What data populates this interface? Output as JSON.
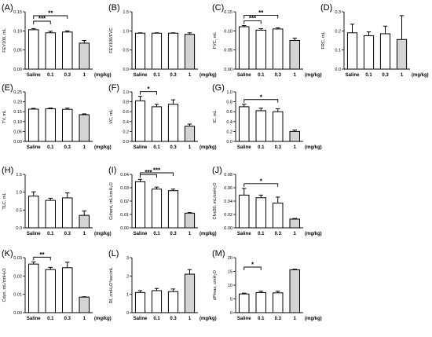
{
  "unit_label": "(mg/kg)",
  "colors": {
    "bar_fill_default": "#ffffff",
    "bar_fill_shaded": "#d4d4d4",
    "ink": "#000000"
  },
  "chart_data": [
    {
      "panel": "(A)",
      "type": "bar",
      "ylabel": "FEV100, mL",
      "ylim": [
        0,
        0.15
      ],
      "yticks": [
        "0.00",
        "0.05",
        "0.10",
        "0.15"
      ],
      "categories": [
        "Saline",
        "0.1",
        "0.3",
        "1"
      ],
      "values": [
        0.103,
        0.095,
        0.097,
        0.068
      ],
      "errors": [
        0.003,
        0.004,
        0.003,
        0.007
      ],
      "shaded": [
        false,
        false,
        false,
        true
      ],
      "significance": [
        {
          "from": 0,
          "to": 1,
          "label": "***"
        },
        {
          "from": 0,
          "to": 2,
          "label": "**"
        }
      ]
    },
    {
      "panel": "(B)",
      "type": "bar",
      "ylabel": "FEV100/FVC",
      "ylim": [
        0,
        1.5
      ],
      "yticks": [
        "0.0",
        "0.5",
        "1.0",
        "1.5"
      ],
      "categories": [
        "Saline",
        "0.1",
        "0.3",
        "1"
      ],
      "values": [
        0.94,
        0.94,
        0.94,
        0.91
      ],
      "errors": [
        0.01,
        0.01,
        0.01,
        0.04
      ],
      "shaded": [
        false,
        false,
        false,
        true
      ],
      "significance": []
    },
    {
      "panel": "(C)",
      "type": "bar",
      "ylabel": "FVC, mL",
      "ylim": [
        0,
        0.15
      ],
      "yticks": [
        "0.00",
        "0.05",
        "0.10",
        "0.15"
      ],
      "categories": [
        "Saline",
        "0.1",
        "0.3",
        "1"
      ],
      "values": [
        0.111,
        0.102,
        0.105,
        0.075
      ],
      "errors": [
        0.003,
        0.004,
        0.003,
        0.006
      ],
      "shaded": [
        false,
        false,
        false,
        true
      ],
      "significance": [
        {
          "from": 0,
          "to": 1,
          "label": "***"
        },
        {
          "from": 0,
          "to": 2,
          "label": "**"
        }
      ]
    },
    {
      "panel": "(D)",
      "type": "bar",
      "ylabel": "FRC, mL",
      "ylim": [
        0,
        0.3
      ],
      "yticks": [
        "0.0",
        "0.1",
        "0.2",
        "0.3"
      ],
      "categories": [
        "Saline",
        "0.1",
        "0.3",
        "1"
      ],
      "values": [
        0.19,
        0.175,
        0.185,
        0.155
      ],
      "errors": [
        0.045,
        0.02,
        0.04,
        0.125
      ],
      "shaded": [
        false,
        false,
        false,
        true
      ],
      "significance": []
    },
    {
      "panel": "(E)",
      "type": "bar",
      "ylabel": "TV, mL",
      "ylim": [
        0,
        0.25
      ],
      "yticks": [
        "0.00",
        "0.05",
        "0.10",
        "0.15",
        "0.20",
        "0.25"
      ],
      "categories": [
        "Saline",
        "0.1",
        "0.3",
        "1"
      ],
      "values": [
        0.163,
        0.165,
        0.162,
        0.135
      ],
      "errors": [
        0.004,
        0.004,
        0.006,
        0.004
      ],
      "shaded": [
        false,
        false,
        false,
        true
      ],
      "significance": []
    },
    {
      "panel": "(F)",
      "type": "bar",
      "ylabel": "VC, mL",
      "ylim": [
        0,
        1.0
      ],
      "yticks": [
        "0.0",
        "0.2",
        "0.4",
        "0.6",
        "0.8",
        "1.0"
      ],
      "categories": [
        "Saline",
        "0.1",
        "0.3",
        "1"
      ],
      "values": [
        0.82,
        0.7,
        0.75,
        0.31
      ],
      "errors": [
        0.09,
        0.05,
        0.09,
        0.04
      ],
      "shaded": [
        false,
        false,
        false,
        true
      ],
      "significance": [
        {
          "from": 0,
          "to": 1,
          "label": "*"
        }
      ]
    },
    {
      "panel": "(G)",
      "type": "bar",
      "ylabel": "IC, mL",
      "ylim": [
        0,
        1.0
      ],
      "yticks": [
        "0.0",
        "0.2",
        "0.4",
        "0.6",
        "0.8",
        "1.0"
      ],
      "categories": [
        "Saline",
        "0.1",
        "0.3",
        "1"
      ],
      "values": [
        0.7,
        0.62,
        0.6,
        0.2
      ],
      "errors": [
        0.05,
        0.05,
        0.06,
        0.03
      ],
      "shaded": [
        false,
        false,
        false,
        true
      ],
      "significance": [
        {
          "from": 0,
          "to": 2,
          "label": "*"
        }
      ]
    },
    {
      "panel": "(H)",
      "type": "bar",
      "ylabel": "TLC, mL",
      "ylim": [
        0,
        1.5
      ],
      "yticks": [
        "0.0",
        "0.5",
        "1.0",
        "1.5"
      ],
      "categories": [
        "Saline",
        "0.1",
        "0.3",
        "1"
      ],
      "values": [
        0.89,
        0.77,
        0.84,
        0.35
      ],
      "errors": [
        0.12,
        0.06,
        0.14,
        0.12
      ],
      "shaded": [
        false,
        false,
        false,
        true
      ],
      "significance": []
    },
    {
      "panel": "(I)",
      "type": "bar",
      "ylabel": "Cchord, mL/cmH₂O",
      "ylim": [
        0,
        0.04
      ],
      "yticks": [
        "0.00",
        "0.01",
        "0.02",
        "0.03",
        "0.04"
      ],
      "categories": [
        "Saline",
        "0.1",
        "0.3",
        "1"
      ],
      "values": [
        0.0345,
        0.029,
        0.0278,
        0.011
      ],
      "errors": [
        0.0018,
        0.0015,
        0.0012,
        0.0004
      ],
      "shaded": [
        false,
        false,
        false,
        true
      ],
      "significance": [
        {
          "from": 0,
          "to": 1,
          "label": "***"
        },
        {
          "from": 0,
          "to": 2,
          "label": "***"
        }
      ]
    },
    {
      "panel": "(J)",
      "type": "bar",
      "ylabel": "Cfvc50, mL/cmH₂O",
      "ylim": [
        0,
        0.08
      ],
      "yticks": [
        "0.00",
        "0.02",
        "0.04",
        "0.06",
        "0.08"
      ],
      "categories": [
        "Saline",
        "0.1",
        "0.3",
        "1"
      ],
      "values": [
        0.049,
        0.045,
        0.037,
        0.013
      ],
      "errors": [
        0.01,
        0.004,
        0.009,
        0.001
      ],
      "shaded": [
        false,
        false,
        false,
        true
      ],
      "significance": [
        {
          "from": 0,
          "to": 2,
          "label": "*"
        }
      ]
    },
    {
      "panel": "(K)",
      "type": "bar",
      "ylabel": "Cdyn, mL/cmH₂O",
      "ylim": [
        0,
        0.03
      ],
      "yticks": [
        "0.00",
        "0.01",
        "0.02",
        "0.03"
      ],
      "categories": [
        "Saline",
        "0.1",
        "0.3",
        "1"
      ],
      "values": [
        0.0265,
        0.0235,
        0.0245,
        0.0085
      ],
      "errors": [
        0.0012,
        0.0012,
        0.003,
        0.0002
      ],
      "shaded": [
        false,
        false,
        false,
        true
      ],
      "significance": [
        {
          "from": 0,
          "to": 1,
          "label": "**"
        }
      ]
    },
    {
      "panel": "(L)",
      "type": "bar",
      "ylabel": "RI, cmH₂O*sec/mL",
      "ylim": [
        0,
        3
      ],
      "yticks": [
        "0",
        "1",
        "2",
        "3"
      ],
      "categories": [
        "Saline",
        "0.1",
        "0.3",
        "1"
      ],
      "values": [
        1.1,
        1.2,
        1.15,
        2.1
      ],
      "errors": [
        0.1,
        0.12,
        0.14,
        0.25
      ],
      "shaded": [
        false,
        false,
        false,
        true
      ],
      "significance": []
    },
    {
      "panel": "(M)",
      "type": "bar",
      "ylabel": "dPmax, cmH₂O",
      "ylim": [
        0,
        20
      ],
      "yticks": [
        "0",
        "5",
        "10",
        "15",
        "20"
      ],
      "categories": [
        "Saline",
        "0.1",
        "0.3",
        "1"
      ],
      "values": [
        6.8,
        7.3,
        7.2,
        15.6
      ],
      "errors": [
        0.3,
        0.5,
        0.6,
        0.2
      ],
      "shaded": [
        false,
        false,
        false,
        true
      ],
      "significance": [
        {
          "from": 0,
          "to": 1,
          "label": "*"
        }
      ]
    }
  ]
}
